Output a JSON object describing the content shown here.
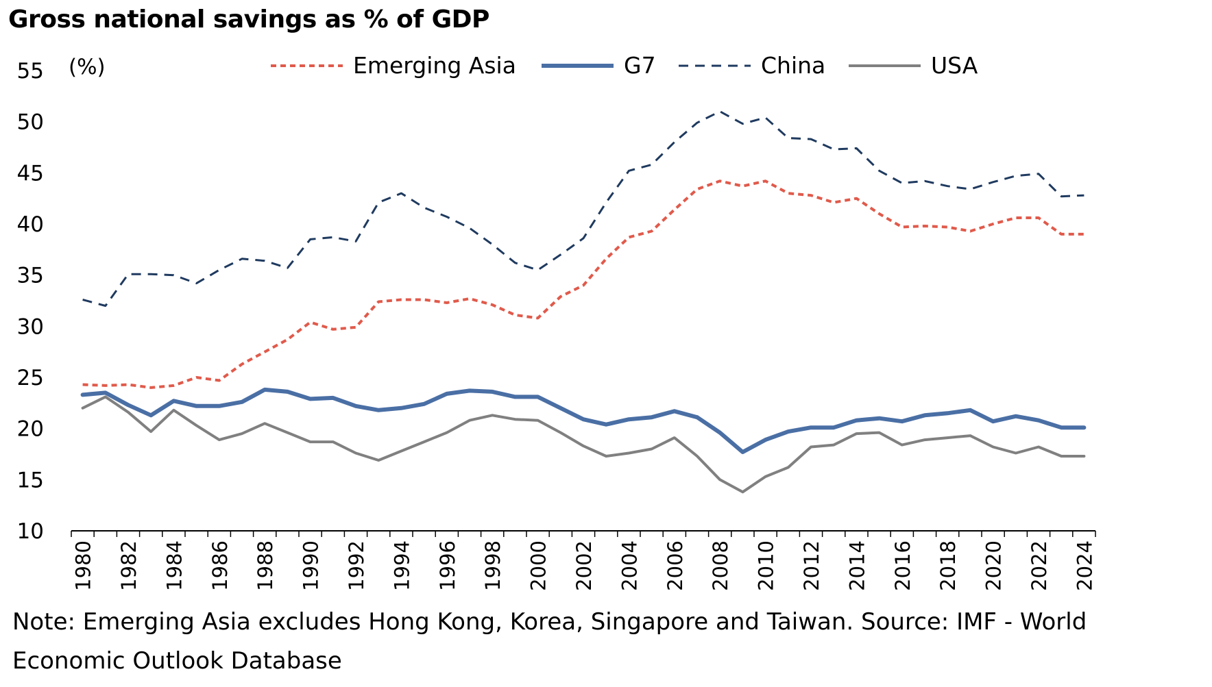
{
  "title": "Gross national savings as % of GDP",
  "note_line_1": "Note: Emerging Asia excludes Hong Kong, Korea, Singapore and Taiwan. Source: IMF - World",
  "note_line_2": "Economic Outlook Database",
  "chart_data": {
    "type": "line",
    "title": "Gross national savings as % of GDP",
    "ylabel": "(%)",
    "xlabel": "",
    "ylim": [
      10,
      55
    ],
    "yticks": [
      10,
      15,
      20,
      25,
      30,
      35,
      40,
      45,
      50,
      55
    ],
    "xticks": [
      "1980",
      "1982",
      "1984",
      "1986",
      "1988",
      "1990",
      "1992",
      "1994",
      "1996",
      "1998",
      "2000",
      "2002",
      "2004",
      "2006",
      "2008",
      "2010",
      "2012",
      "2014",
      "2016",
      "2018",
      "2020",
      "2022",
      "2024"
    ],
    "grid": false,
    "legend": "top",
    "x": [
      1980,
      1981,
      1982,
      1983,
      1984,
      1985,
      1986,
      1987,
      1988,
      1989,
      1990,
      1991,
      1992,
      1993,
      1994,
      1995,
      1996,
      1997,
      1998,
      1999,
      2000,
      2001,
      2002,
      2003,
      2004,
      2005,
      2006,
      2007,
      2008,
      2009,
      2010,
      2011,
      2012,
      2013,
      2014,
      2015,
      2016,
      2017,
      2018,
      2019,
      2020,
      2021,
      2022,
      2023,
      2024
    ],
    "series": [
      {
        "name": "Emerging Asia",
        "color": "#e05a4b",
        "style": "dotted",
        "values": [
          24.3,
          24.2,
          24.3,
          24.0,
          24.2,
          25.0,
          24.7,
          26.3,
          27.5,
          28.7,
          30.4,
          29.7,
          29.9,
          32.4,
          32.6,
          32.6,
          32.3,
          32.7,
          32.1,
          31.1,
          30.8,
          32.9,
          34.0,
          36.6,
          38.7,
          39.3,
          41.4,
          43.4,
          44.2,
          43.7,
          44.2,
          43.0,
          42.8,
          42.1,
          42.5,
          41.0,
          39.7,
          39.8,
          39.7,
          39.3,
          40.0,
          40.6,
          40.6,
          39.0,
          39.0
        ]
      },
      {
        "name": "G7",
        "color": "#4a6fa5",
        "style": "solid-thick",
        "values": [
          23.3,
          23.5,
          22.3,
          21.3,
          22.7,
          22.2,
          22.2,
          22.6,
          23.8,
          23.6,
          22.9,
          23.0,
          22.2,
          21.8,
          22.0,
          22.4,
          23.4,
          23.7,
          23.6,
          23.1,
          23.1,
          22.0,
          20.9,
          20.4,
          20.9,
          21.1,
          21.7,
          21.1,
          19.6,
          17.7,
          18.9,
          19.7,
          20.1,
          20.1,
          20.8,
          21.0,
          20.7,
          21.3,
          21.5,
          21.8,
          20.7,
          21.2,
          20.8,
          20.1,
          20.1
        ]
      },
      {
        "name": "China",
        "color": "#1f3a5f",
        "style": "dashed",
        "values": [
          32.6,
          32.0,
          35.1,
          35.1,
          35.0,
          34.2,
          35.5,
          36.6,
          36.4,
          35.7,
          38.5,
          38.7,
          38.3,
          42.1,
          43.0,
          41.6,
          40.7,
          39.6,
          38.0,
          36.2,
          35.5,
          37.0,
          38.6,
          42.1,
          45.2,
          45.8,
          48.0,
          49.9,
          51.0,
          49.8,
          50.4,
          48.4,
          48.3,
          47.3,
          47.4,
          45.2,
          44.0,
          44.2,
          43.7,
          43.4,
          44.1,
          44.7,
          44.9,
          42.7,
          42.8
        ]
      },
      {
        "name": "USA",
        "color": "#808080",
        "style": "solid",
        "values": [
          22.0,
          23.1,
          21.6,
          19.7,
          21.8,
          20.3,
          18.9,
          19.5,
          20.5,
          19.6,
          18.7,
          18.7,
          17.6,
          16.9,
          17.8,
          18.7,
          19.6,
          20.8,
          21.3,
          20.9,
          20.8,
          19.6,
          18.3,
          17.3,
          17.6,
          18.0,
          19.1,
          17.3,
          15.0,
          13.8,
          15.3,
          16.2,
          18.2,
          18.4,
          19.5,
          19.6,
          18.4,
          18.9,
          19.1,
          19.3,
          18.2,
          17.6,
          18.2,
          17.3,
          17.3
        ]
      }
    ]
  }
}
